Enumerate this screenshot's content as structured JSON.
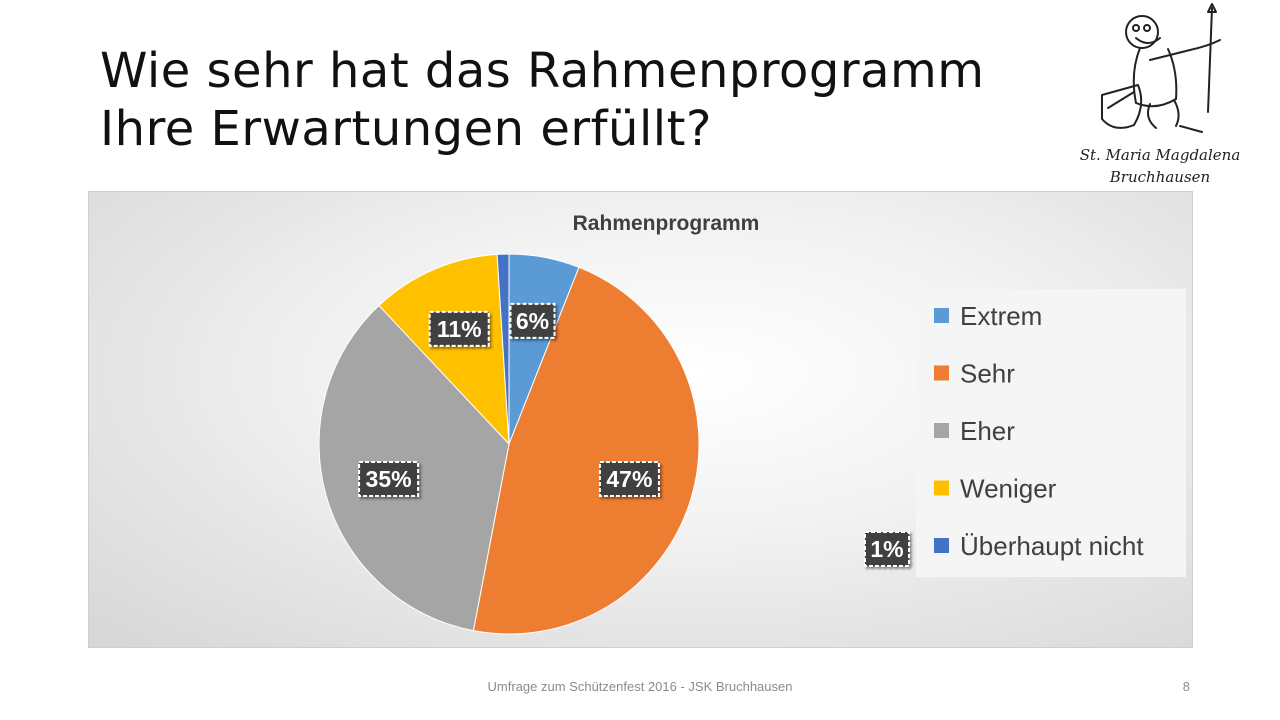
{
  "slide": {
    "title_line1": "Wie sehr hat das Rahmenprogramm",
    "title_line2": "Ihre Erwartungen erfüllt?",
    "footer": "Umfrage zum Schützenfest 2016 - JSK Bruchhausen",
    "page_number": "8"
  },
  "logo": {
    "text_line1": "St. Maria Magdalena",
    "text_line2": "Bruchhausen"
  },
  "chart_data": {
    "type": "pie",
    "title": "Rahmenprogramm",
    "categories": [
      "Extrem",
      "Sehr",
      "Eher",
      "Weniger",
      "Überhaupt nicht"
    ],
    "values": [
      6,
      47,
      35,
      11,
      1
    ],
    "labels": [
      "6%",
      "47%",
      "35%",
      "11%",
      "1%"
    ],
    "colors": [
      "#5b9bd5",
      "#ed7d31",
      "#a5a5a5",
      "#ffc000",
      "#4472c4"
    ],
    "legend_position": "right",
    "start_angle_deg": 0,
    "direction": "clockwise"
  }
}
